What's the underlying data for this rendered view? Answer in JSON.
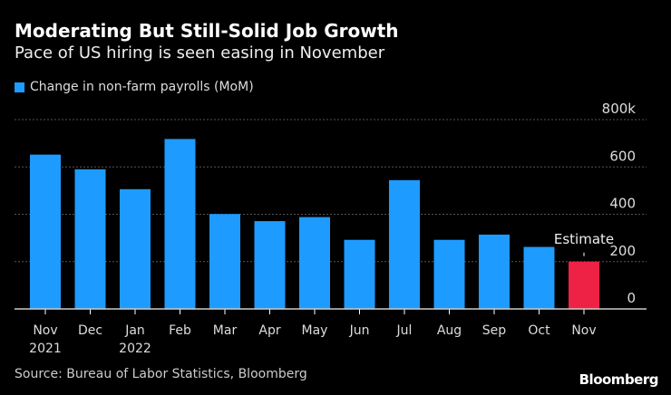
{
  "chart_data": {
    "type": "bar",
    "title": "Moderating But Still-Solid Job Growth",
    "subtitle": "Pace of US hiring is seen easing in November",
    "legend": "Change in non-farm payrolls (MoM)",
    "categories": [
      "Nov",
      "Dec",
      "Jan",
      "Feb",
      "Mar",
      "Apr",
      "May",
      "Jun",
      "Jul",
      "Aug",
      "Sep",
      "Oct",
      "Nov"
    ],
    "category_sublabels": [
      "2021",
      "",
      "2022",
      "",
      "",
      "",
      "",
      "",
      "",
      "",
      "",
      "",
      ""
    ],
    "values": [
      652,
      590,
      506,
      718,
      401,
      371,
      388,
      292,
      544,
      292,
      314,
      262,
      200
    ],
    "estimate_index": 12,
    "annotation": "Estimate",
    "ylim": [
      0,
      800
    ],
    "yticks": [
      0,
      200,
      400,
      600,
      800
    ],
    "ytick_labels": [
      "0",
      "200",
      "400",
      "600",
      "800k"
    ],
    "xlabel": "",
    "ylabel": "",
    "grid": true,
    "colors": {
      "bar": "#1e9bff",
      "estimate": "#ee2244",
      "grid": "#555555"
    }
  },
  "source": "Source: Bureau of Labor Statistics, Bloomberg",
  "brand": "Bloomberg"
}
